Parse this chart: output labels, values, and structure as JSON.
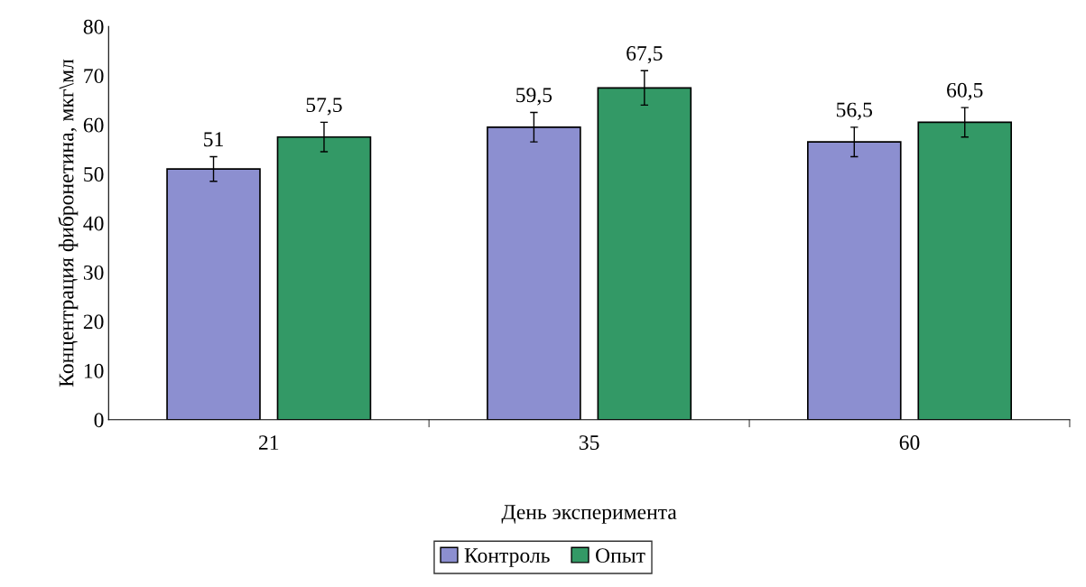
{
  "chart_data": {
    "type": "bar",
    "xlabel": "День эксперимента",
    "ylabel": "Концентрация фибронетина, мкг\\мл",
    "categories": [
      "21",
      "35",
      "60"
    ],
    "series": [
      {
        "name": "Контроль",
        "color": "#8c8fd0",
        "values": [
          51,
          59.5,
          56.5
        ],
        "value_labels": [
          "51",
          "59,5",
          "56,5"
        ],
        "errors": [
          2.5,
          3,
          3
        ]
      },
      {
        "name": "Опыт",
        "color": "#339966",
        "values": [
          57.5,
          67.5,
          60.5
        ],
        "value_labels": [
          "57,5",
          "67,5",
          "60,5"
        ],
        "errors": [
          3,
          3.5,
          3
        ]
      }
    ],
    "ylim": [
      0,
      80
    ],
    "yticks": [
      0,
      10,
      20,
      30,
      40,
      50,
      60,
      70,
      80
    ],
    "grid": false,
    "legend": "bottom"
  }
}
